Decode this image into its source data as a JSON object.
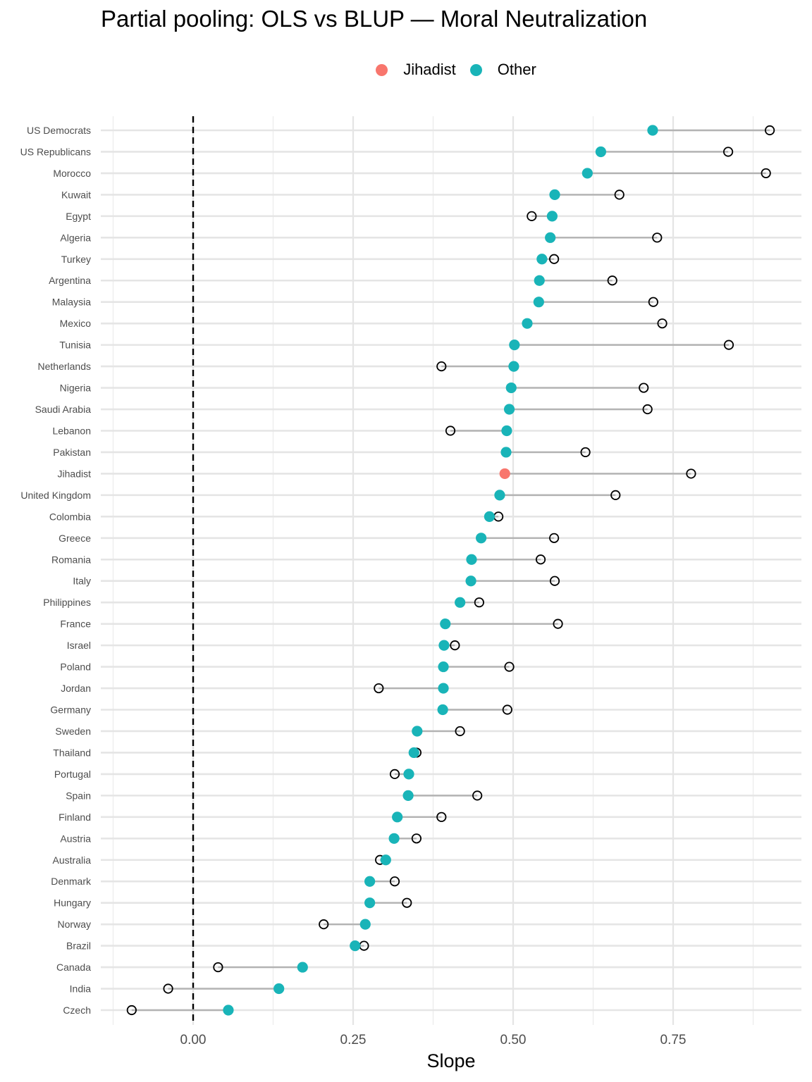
{
  "chart_data": {
    "type": "dumbbell",
    "title": "Partial pooling: OLS vs BLUP — Moral Neutralization",
    "xlabel": "Slope",
    "ylabel": "",
    "xlim": [
      -0.125,
      0.97
    ],
    "x_ticks": [
      0.0,
      0.25,
      0.5,
      0.75
    ],
    "x_tick_labels": [
      "0.00",
      "0.25",
      "0.50",
      "0.75"
    ],
    "reference_line": {
      "x": 0.0,
      "style": "dashed"
    },
    "grid": true,
    "legend": {
      "position": "top",
      "entries": [
        {
          "label": "Jihadist",
          "color": "#F8766D"
        },
        {
          "label": "Other",
          "color": "#19B4B8"
        }
      ]
    },
    "markers": {
      "blup": "filled circle (group color)",
      "ols": "open circle (black)"
    },
    "rows": [
      {
        "label": "US Democrats",
        "group": "Other",
        "blup": 0.718,
        "ols": 0.901
      },
      {
        "label": "US Republicans",
        "group": "Other",
        "blup": 0.637,
        "ols": 0.836
      },
      {
        "label": "Morocco",
        "group": "Other",
        "blup": 0.616,
        "ols": 0.895
      },
      {
        "label": "Kuwait",
        "group": "Other",
        "blup": 0.565,
        "ols": 0.666
      },
      {
        "label": "Egypt",
        "group": "Other",
        "blup": 0.561,
        "ols": 0.529
      },
      {
        "label": "Algeria",
        "group": "Other",
        "blup": 0.558,
        "ols": 0.725
      },
      {
        "label": "Turkey",
        "group": "Other",
        "blup": 0.545,
        "ols": 0.564
      },
      {
        "label": "Argentina",
        "group": "Other",
        "blup": 0.541,
        "ols": 0.655
      },
      {
        "label": "Malaysia",
        "group": "Other",
        "blup": 0.54,
        "ols": 0.719
      },
      {
        "label": "Mexico",
        "group": "Other",
        "blup": 0.522,
        "ols": 0.733
      },
      {
        "label": "Tunisia",
        "group": "Other",
        "blup": 0.502,
        "ols": 0.837
      },
      {
        "label": "Netherlands",
        "group": "Other",
        "blup": 0.501,
        "ols": 0.388
      },
      {
        "label": "Nigeria",
        "group": "Other",
        "blup": 0.497,
        "ols": 0.704
      },
      {
        "label": "Saudi Arabia",
        "group": "Other",
        "blup": 0.494,
        "ols": 0.71
      },
      {
        "label": "Lebanon",
        "group": "Other",
        "blup": 0.49,
        "ols": 0.402
      },
      {
        "label": "Pakistan",
        "group": "Other",
        "blup": 0.489,
        "ols": 0.613
      },
      {
        "label": "Jihadist",
        "group": "Jihadist",
        "blup": 0.487,
        "ols": 0.778
      },
      {
        "label": "United Kingdom",
        "group": "Other",
        "blup": 0.479,
        "ols": 0.66
      },
      {
        "label": "Colombia",
        "group": "Other",
        "blup": 0.463,
        "ols": 0.477
      },
      {
        "label": "Greece",
        "group": "Other",
        "blup": 0.45,
        "ols": 0.564
      },
      {
        "label": "Romania",
        "group": "Other",
        "blup": 0.435,
        "ols": 0.543
      },
      {
        "label": "Italy",
        "group": "Other",
        "blup": 0.434,
        "ols": 0.565
      },
      {
        "label": "Philippines",
        "group": "Other",
        "blup": 0.417,
        "ols": 0.447
      },
      {
        "label": "France",
        "group": "Other",
        "blup": 0.394,
        "ols": 0.57
      },
      {
        "label": "Israel",
        "group": "Other",
        "blup": 0.392,
        "ols": 0.409
      },
      {
        "label": "Poland",
        "group": "Other",
        "blup": 0.391,
        "ols": 0.494
      },
      {
        "label": "Jordan",
        "group": "Other",
        "blup": 0.391,
        "ols": 0.29
      },
      {
        "label": "Germany",
        "group": "Other",
        "blup": 0.39,
        "ols": 0.491
      },
      {
        "label": "Sweden",
        "group": "Other",
        "blup": 0.35,
        "ols": 0.417
      },
      {
        "label": "Thailand",
        "group": "Other",
        "blup": 0.345,
        "ols": 0.349
      },
      {
        "label": "Portugal",
        "group": "Other",
        "blup": 0.337,
        "ols": 0.315
      },
      {
        "label": "Spain",
        "group": "Other",
        "blup": 0.336,
        "ols": 0.444
      },
      {
        "label": "Finland",
        "group": "Other",
        "blup": 0.319,
        "ols": 0.388
      },
      {
        "label": "Austria",
        "group": "Other",
        "blup": 0.314,
        "ols": 0.349
      },
      {
        "label": "Australia",
        "group": "Other",
        "blup": 0.301,
        "ols": 0.292
      },
      {
        "label": "Denmark",
        "group": "Other",
        "blup": 0.276,
        "ols": 0.315
      },
      {
        "label": "Hungary",
        "group": "Other",
        "blup": 0.276,
        "ols": 0.334
      },
      {
        "label": "Norway",
        "group": "Other",
        "blup": 0.269,
        "ols": 0.204
      },
      {
        "label": "Brazil",
        "group": "Other",
        "blup": 0.253,
        "ols": 0.267
      },
      {
        "label": "Canada",
        "group": "Other",
        "blup": 0.171,
        "ols": 0.039
      },
      {
        "label": "India",
        "group": "Other",
        "blup": 0.134,
        "ols": -0.039
      },
      {
        "label": "Czech",
        "group": "Other",
        "blup": 0.055,
        "ols": -0.096
      }
    ]
  }
}
